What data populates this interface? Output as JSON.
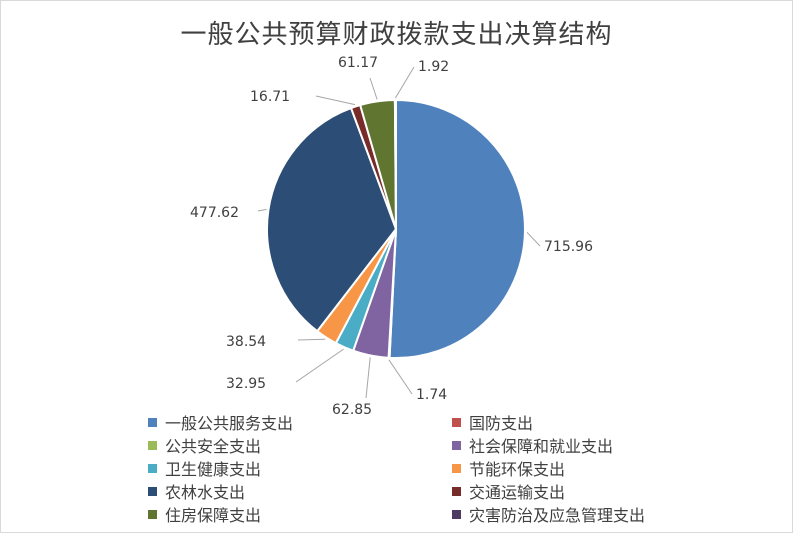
{
  "chart_data": {
    "type": "pie",
    "title": "一般公共预算财政拨款支出决算结构",
    "legend_position": "bottom",
    "categories": [
      "一般公共服务支出",
      "国防支出",
      "公共安全支出",
      "社会保障和就业支出",
      "卫生健康支出",
      "节能环保支出",
      "农林水支出",
      "交通运输支出",
      "住房保障支出",
      "灾害防治及应急管理支出"
    ],
    "values": [
      715.96,
      1.74,
      0,
      62.85,
      32.95,
      38.54,
      477.62,
      16.71,
      61.17,
      1.92
    ],
    "data_labels": [
      "715.96",
      "1.74",
      "",
      "62.85",
      "32.95",
      "38.54",
      "477.62",
      "16.71",
      "61.17",
      "1.92"
    ],
    "colors": [
      "#4f81bd",
      "#c0504d",
      "#9bbb59",
      "#8064a2",
      "#4bacc6",
      "#f79646",
      "#2c4d75",
      "#772c2a",
      "#5f7530",
      "#4d3b62"
    ]
  }
}
